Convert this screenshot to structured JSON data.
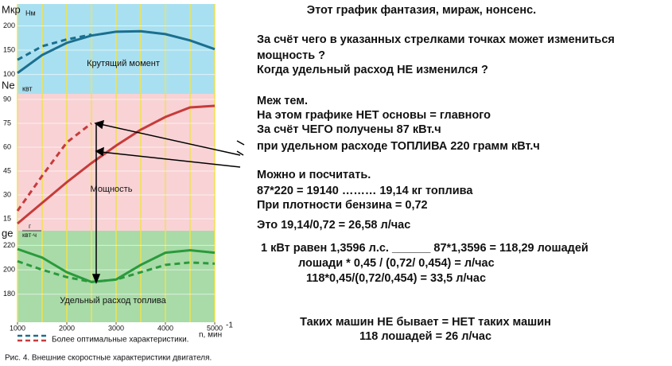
{
  "chart_data": [
    {
      "type": "line",
      "ylabel": "Мкр",
      "yunit": "Нм",
      "label": "Крутящий момент",
      "x": [
        1000,
        1500,
        2000,
        2500,
        3000,
        3500,
        4000,
        4500,
        5000
      ],
      "xlim": [
        1000,
        5000
      ],
      "ylim": [
        60,
        245
      ],
      "yticks": [
        100,
        150,
        200
      ],
      "series": [
        {
          "color": "#1b6f8f",
          "dash": false,
          "values": [
            103,
            140,
            165,
            180,
            188,
            189,
            183,
            170,
            152
          ]
        },
        {
          "color": "#1b6f8f",
          "dash": true,
          "values": [
            130,
            158,
            172,
            182,
            null,
            null,
            null,
            null,
            null
          ]
        }
      ]
    },
    {
      "type": "line",
      "ylabel": "Ne",
      "yunit": "квт",
      "label": "Мощность",
      "x": [
        1000,
        1500,
        2000,
        2500,
        3000,
        3500,
        4000,
        4500,
        5000
      ],
      "xlim": [
        1000,
        5000
      ],
      "ylim": [
        7.5,
        93.5
      ],
      "yticks": [
        15,
        30,
        45,
        60,
        75,
        90
      ],
      "series": [
        {
          "color": "#c63b3b",
          "dash": false,
          "values": [
            12,
            25,
            38,
            50,
            61,
            71,
            79,
            85,
            86
          ]
        },
        {
          "color": "#c63b3b",
          "dash": true,
          "values": [
            20,
            42,
            63,
            75,
            null,
            null,
            null,
            null,
            null
          ]
        }
      ]
    },
    {
      "type": "line",
      "ylabel": "ge",
      "yunit": [
        "г",
        "квт·ч"
      ],
      "label": "Удельный расход топлива",
      "x": [
        1000,
        1500,
        2000,
        2500,
        3000,
        3500,
        4000,
        4500,
        5000
      ],
      "xlim": [
        1000,
        5000
      ],
      "ylim": [
        157,
        232
      ],
      "yticks": [
        180,
        200,
        220
      ],
      "xticks": [
        1000,
        2000,
        3000,
        4000,
        5000
      ],
      "xlabel": "n, мин",
      "xlabel_sup": "-1",
      "series": [
        {
          "color": "#2a9a3c",
          "dash": false,
          "values": [
            217,
            210,
            198,
            190,
            192,
            204,
            214,
            216,
            214
          ]
        },
        {
          "color": "#2a9a3c",
          "dash": true,
          "values": [
            207,
            200,
            194,
            190,
            192,
            198,
            204,
            206,
            205
          ]
        }
      ]
    }
  ],
  "legend": {
    "text": "Более оптимальные характеристики.",
    "colors": [
      "#1b6f8f",
      "#c63b3b"
    ]
  },
  "caption": "Рис. 4. Внешние скоростные характеристики двигателя.",
  "notes": {
    "title": "Этот график фантазия, мираж, нонсенс.",
    "lines": [
      "За счёт чего в указанных стрелками точках может измениться",
      "мощность ?",
      "Когда удельный расход НЕ изменился ?",
      "Меж тем.",
      "На этом графике НЕТ основы = главного",
      "За счёт ЧЕГО  получены 87 кВт.ч",
      "при удельном расходе ТОПЛИВА 220 грамм кВт.ч",
      "Можно и посчитать.",
      "87*220 = 19140 ……… 19,14 кг топлива",
      "При плотности бензина = 0,72",
      "Это 19,14/0,72  =  26,58 л/час",
      "1 кВт равен 1,3596 л.с.  ______  87*1,3596 = 118,29 лошадей",
      "лошади * 0,45 / (0,72/ 0,454) = л/час",
      "118*0,45/(0,72/0,454) = 33,5 л/час"
    ],
    "footer": [
      "Таких машин НЕ бывает = НЕТ таких машин",
      "118 лошадей = 26 л/час"
    ]
  }
}
